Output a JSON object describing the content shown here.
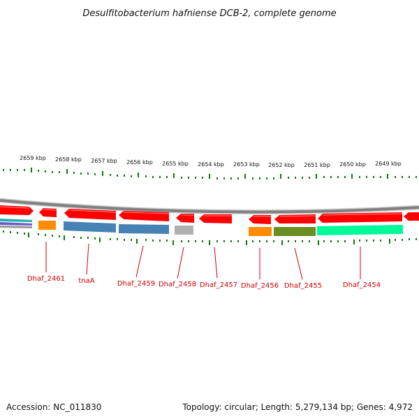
{
  "title": "Desulfitobacterium hafniense DCB-2, complete genome",
  "footer": {
    "accession": "Accession: NC_011830",
    "topology": "Topology: circular; Length: 5,279,134 bp; Genes: 4,972"
  },
  "scale_labels": [
    "2659 kbp",
    "2658 kbp",
    "2657 kbp",
    "2656 kbp",
    "2655 kbp",
    "2654 kbp",
    "2653 kbp",
    "2652 kbp",
    "2651 kbp",
    "2650 kbp",
    "2649 kbp"
  ],
  "gene_labels": [
    "Dhaf_2461",
    "tnaA",
    "Dhaf_2459",
    "Dhaf_2458",
    "Dhaf_2457",
    "Dhaf_2456",
    "Dhaf_2455",
    "Dhaf_2454"
  ],
  "colors": {
    "backbone": "#808080",
    "cds": "#ff0000",
    "tick": "#117711",
    "label": "#cc0000",
    "cog_orange": "#ff8c00",
    "cog_blue": "#4682b4",
    "cog_gray": "#b0b0b0",
    "cog_olive": "#6b8e23",
    "cog_spring": "#00fa9a",
    "cog_cyan": "#20b2aa",
    "cog_purple": "#6a5acd"
  }
}
